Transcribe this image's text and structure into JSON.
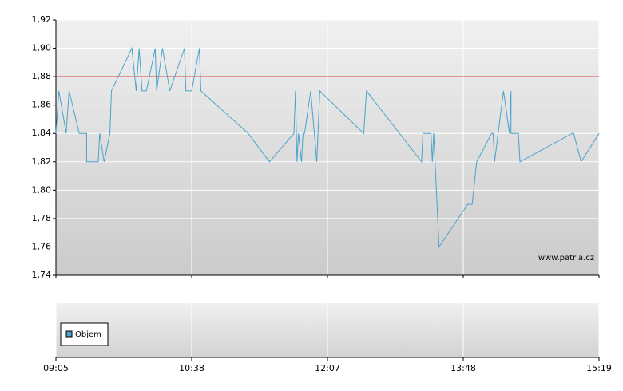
{
  "chart_data": {
    "type": "line",
    "x": [
      "09:05",
      "09:07",
      "09:12",
      "09:14",
      "09:21",
      "09:26",
      "09:26",
      "09:34",
      "09:35",
      "09:38",
      "09:42",
      "09:43",
      "09:57",
      "10:00",
      "10:02",
      "10:04",
      "10:07",
      "10:13",
      "10:14",
      "10:18",
      "10:23",
      "10:33",
      "10:34",
      "10:38",
      "10:43",
      "10:44",
      "11:15",
      "11:29",
      "11:45",
      "11:46",
      "11:47",
      "11:48",
      "11:50",
      "11:51",
      "11:52",
      "11:56",
      "12:00",
      "12:02",
      "12:34",
      "12:36",
      "13:17",
      "13:18",
      "13:24",
      "13:25",
      "13:26",
      "13:27",
      "13:30",
      "13:51",
      "13:54",
      "13:57",
      "14:07",
      "14:08",
      "14:09",
      "14:15",
      "14:19",
      "14:20",
      "14:20",
      "14:25",
      "14:26",
      "15:01",
      "15:02",
      "15:07",
      "15:19"
    ],
    "series": [
      {
        "color": "#4aa3cc",
        "values": [
          1.84,
          1.87,
          1.84,
          1.87,
          1.84,
          1.84,
          1.82,
          1.82,
          1.84,
          1.82,
          1.84,
          1.87,
          1.9,
          1.87,
          1.9,
          1.87,
          1.87,
          1.9,
          1.87,
          1.9,
          1.87,
          1.9,
          1.87,
          1.87,
          1.9,
          1.87,
          1.84,
          1.82,
          1.84,
          1.87,
          1.82,
          1.84,
          1.82,
          1.84,
          1.84,
          1.87,
          1.82,
          1.87,
          1.84,
          1.87,
          1.82,
          1.84,
          1.84,
          1.82,
          1.84,
          1.82,
          1.76,
          1.79,
          1.79,
          1.82,
          1.84,
          1.84,
          1.82,
          1.87,
          1.84,
          1.87,
          1.84,
          1.84,
          1.82,
          1.84,
          1.84,
          1.82,
          1.84
        ]
      }
    ],
    "ylim": [
      1.74,
      1.92
    ],
    "yticks": [
      {
        "value": 1.74,
        "label": "1,74"
      },
      {
        "value": 1.76,
        "label": "1,76"
      },
      {
        "value": 1.78,
        "label": "1,78"
      },
      {
        "value": 1.8,
        "label": "1,80"
      },
      {
        "value": 1.82,
        "label": "1,82"
      },
      {
        "value": 1.84,
        "label": "1,84"
      },
      {
        "value": 1.86,
        "label": "1,86"
      },
      {
        "value": 1.88,
        "label": "1,88"
      },
      {
        "value": 1.9,
        "label": "1,90"
      },
      {
        "value": 1.92,
        "label": "1,92"
      }
    ],
    "xticks": [
      "09:05",
      "10:38",
      "12:07",
      "13:48",
      "15:19"
    ],
    "grid": true,
    "reference_line": {
      "value": 1.88,
      "color": "#cc0000"
    },
    "watermark": "www.patria.cz",
    "volume_legend": {
      "label": "Objem",
      "color": "#4aa3cc"
    }
  }
}
